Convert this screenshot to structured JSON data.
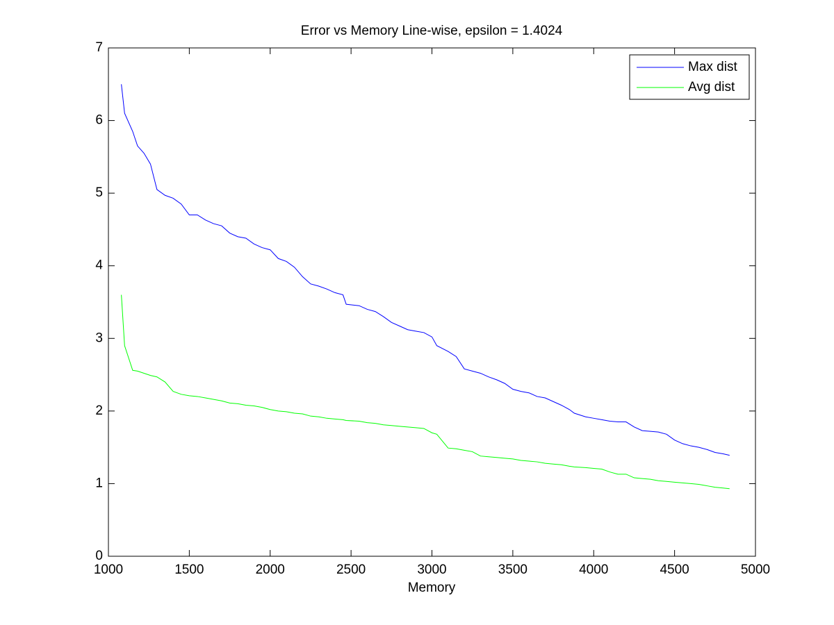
{
  "chart_data": {
    "type": "line",
    "title": "Error vs Memory Line-wise, epsilon = 1.4024",
    "x_label": "Memory",
    "x": [
      1080,
      1100,
      1150,
      1180,
      1220,
      1260,
      1300,
      1350,
      1400,
      1450,
      1500,
      1550,
      1600,
      1650,
      1700,
      1750,
      1800,
      1850,
      1900,
      1950,
      2000,
      2050,
      2100,
      2150,
      2200,
      2250,
      2300,
      2350,
      2400,
      2450,
      2470,
      2550,
      2600,
      2650,
      2700,
      2750,
      2800,
      2850,
      2900,
      2950,
      3000,
      3030,
      3100,
      3150,
      3200,
      3250,
      3300,
      3350,
      3400,
      3450,
      3500,
      3550,
      3600,
      3650,
      3700,
      3750,
      3800,
      3850,
      3880,
      3950,
      4000,
      4050,
      4100,
      4150,
      4200,
      4250,
      4300,
      4350,
      4400,
      4450,
      4500,
      4550,
      4600,
      4650,
      4700,
      4750,
      4800,
      4840
    ],
    "series": [
      {
        "name": "Max dist",
        "color": "#0000ff",
        "values": [
          6.5,
          6.1,
          5.85,
          5.65,
          5.55,
          5.4,
          5.05,
          4.97,
          4.93,
          4.85,
          4.7,
          4.7,
          4.63,
          4.58,
          4.55,
          4.45,
          4.4,
          4.38,
          4.3,
          4.25,
          4.22,
          4.1,
          4.06,
          3.98,
          3.85,
          3.75,
          3.72,
          3.68,
          3.63,
          3.6,
          3.47,
          3.45,
          3.4,
          3.37,
          3.3,
          3.22,
          3.17,
          3.12,
          3.1,
          3.08,
          3.02,
          2.9,
          2.82,
          2.75,
          2.58,
          2.55,
          2.52,
          2.47,
          2.43,
          2.38,
          2.3,
          2.27,
          2.25,
          2.2,
          2.18,
          2.13,
          2.08,
          2.02,
          1.97,
          1.92,
          1.9,
          1.88,
          1.86,
          1.85,
          1.85,
          1.78,
          1.73,
          1.72,
          1.71,
          1.68,
          1.6,
          1.55,
          1.52,
          1.5,
          1.47,
          1.43,
          1.41,
          1.39
        ]
      },
      {
        "name": "Avg dist",
        "color": "#00ff00",
        "values": [
          3.6,
          2.9,
          2.56,
          2.55,
          2.52,
          2.49,
          2.47,
          2.4,
          2.27,
          2.23,
          2.21,
          2.2,
          2.18,
          2.16,
          2.14,
          2.11,
          2.1,
          2.08,
          2.07,
          2.05,
          2.02,
          2.0,
          1.99,
          1.97,
          1.96,
          1.93,
          1.92,
          1.9,
          1.89,
          1.88,
          1.87,
          1.86,
          1.84,
          1.83,
          1.81,
          1.8,
          1.79,
          1.78,
          1.77,
          1.76,
          1.7,
          1.68,
          1.49,
          1.48,
          1.46,
          1.44,
          1.38,
          1.37,
          1.36,
          1.35,
          1.34,
          1.32,
          1.31,
          1.3,
          1.28,
          1.27,
          1.26,
          1.24,
          1.23,
          1.22,
          1.21,
          1.2,
          1.16,
          1.13,
          1.13,
          1.08,
          1.07,
          1.06,
          1.04,
          1.03,
          1.02,
          1.01,
          1.0,
          0.99,
          0.97,
          0.95,
          0.94,
          0.93
        ]
      }
    ],
    "xlim": [
      1000,
      5000
    ],
    "xticks": [
      1000,
      1500,
      2000,
      2500,
      3000,
      3500,
      4000,
      4500,
      5000
    ],
    "ylim": [
      0,
      7
    ],
    "yticks": [
      0,
      1,
      2,
      3,
      4,
      5,
      6,
      7
    ],
    "grid": false,
    "legend": "top-right"
  }
}
